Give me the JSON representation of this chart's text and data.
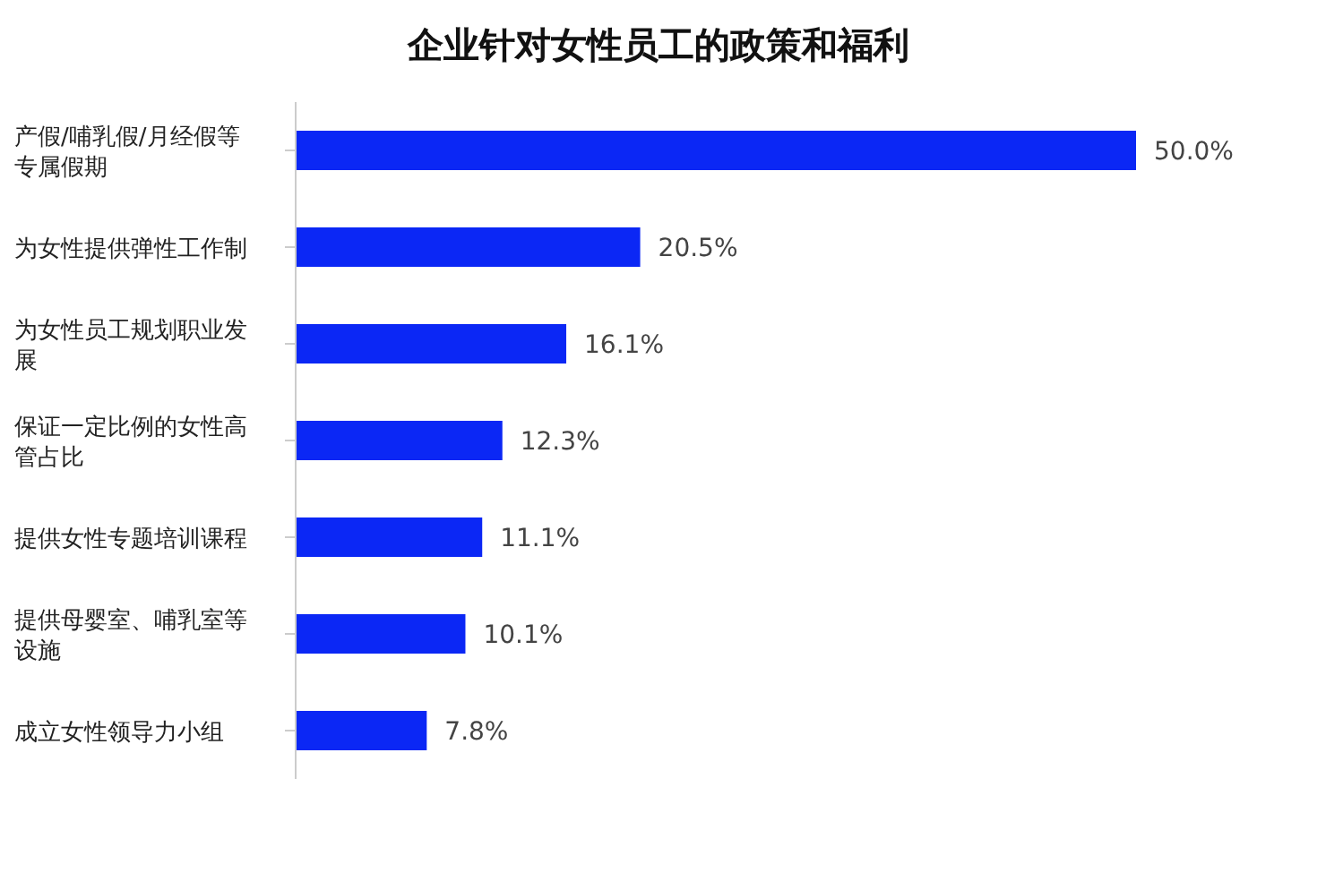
{
  "chart_data": {
    "type": "bar",
    "orientation": "horizontal",
    "title": "企业针对女性员工的政策和福利",
    "categories": [
      "产假/哺乳假/月经假等专属假期",
      "为女性提供弹性工作制",
      "为女性员工规划职业发展",
      "保证一定比例的女性高管占比",
      "提供女性专题培训课程",
      "提供母婴室、哺乳室等设施",
      "成立女性领导力小组"
    ],
    "values": [
      50.0,
      20.5,
      16.1,
      12.3,
      11.1,
      10.1,
      7.8
    ],
    "value_labels": [
      "50.0%",
      "20.5%",
      "16.1%",
      "12.3%",
      "11.1%",
      "10.1%",
      "7.8%"
    ],
    "color": "#0b27f5",
    "grid": false,
    "legend": false
  }
}
